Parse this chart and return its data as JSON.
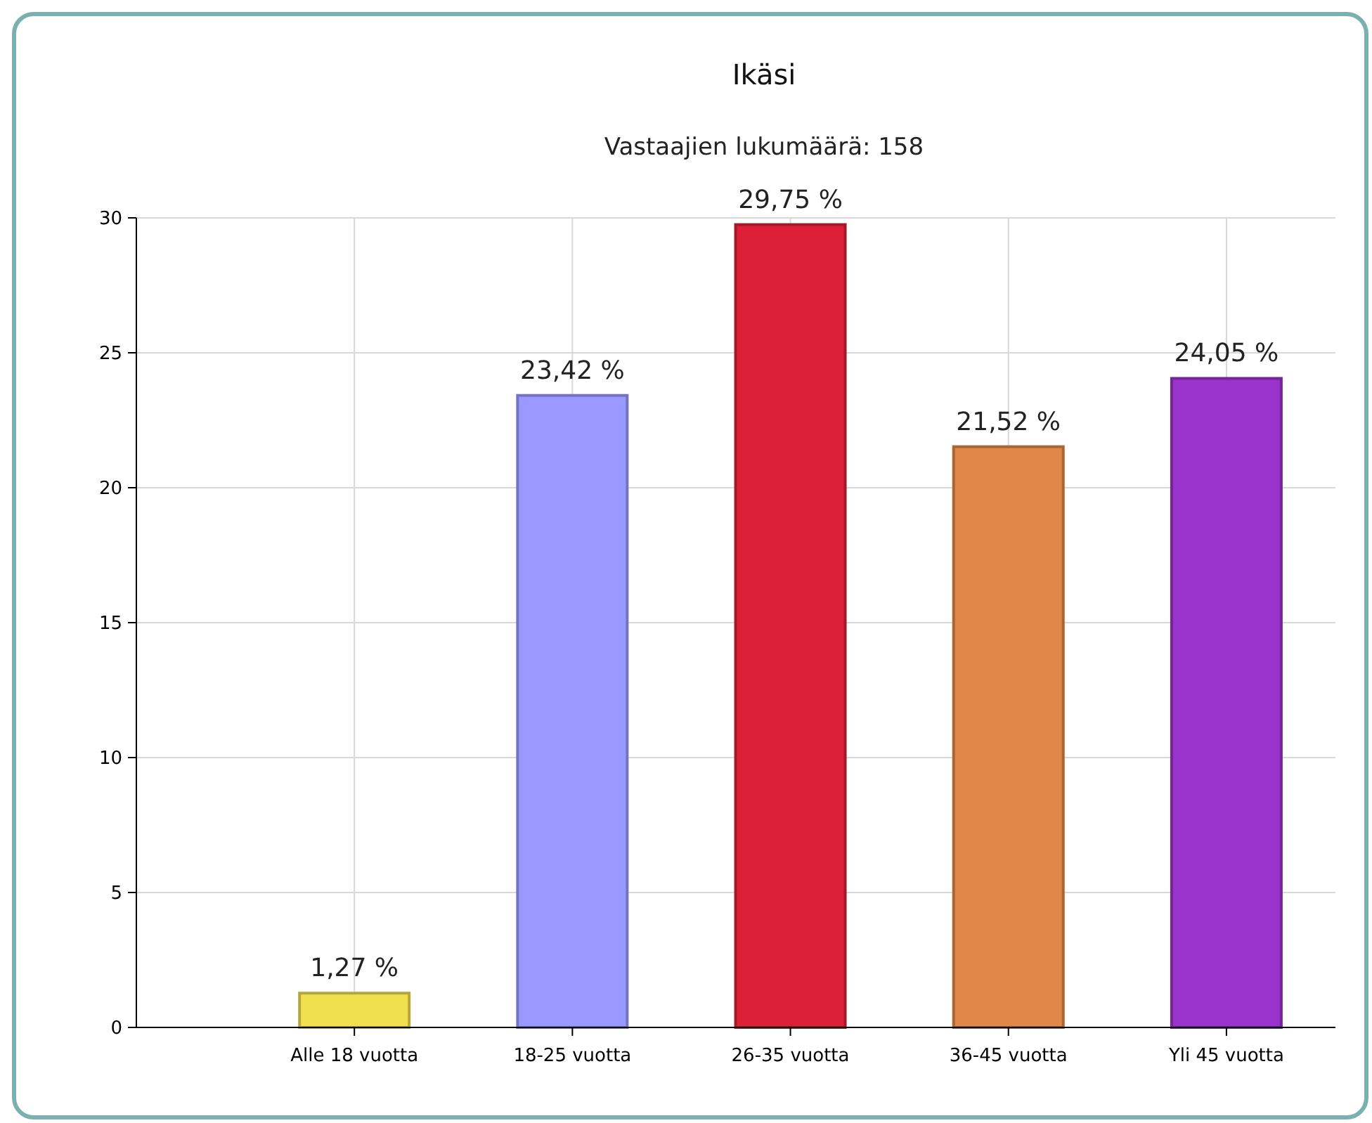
{
  "chart_data": {
    "type": "bar",
    "title": "Ikäsi",
    "subtitle": "Vastaajien lukumäärä: 158",
    "categories": [
      "Alle 18 vuotta",
      "18-25 vuotta",
      "26-35 vuotta",
      "36-45 vuotta",
      "Yli 45 vuotta"
    ],
    "values": [
      1.27,
      23.42,
      29.75,
      21.52,
      24.05
    ],
    "colors": [
      "#f0e050",
      "#9999ff",
      "#dc2038",
      "#e08848",
      "#9933cc"
    ],
    "value_labels": [
      "1,27 %",
      "23,42 %",
      "29,75 %",
      "21,52 %",
      "24,05 %"
    ],
    "ylim": [
      0,
      30
    ],
    "yticks": [
      0,
      5,
      10,
      15,
      20,
      25,
      30
    ],
    "grid": true
  }
}
